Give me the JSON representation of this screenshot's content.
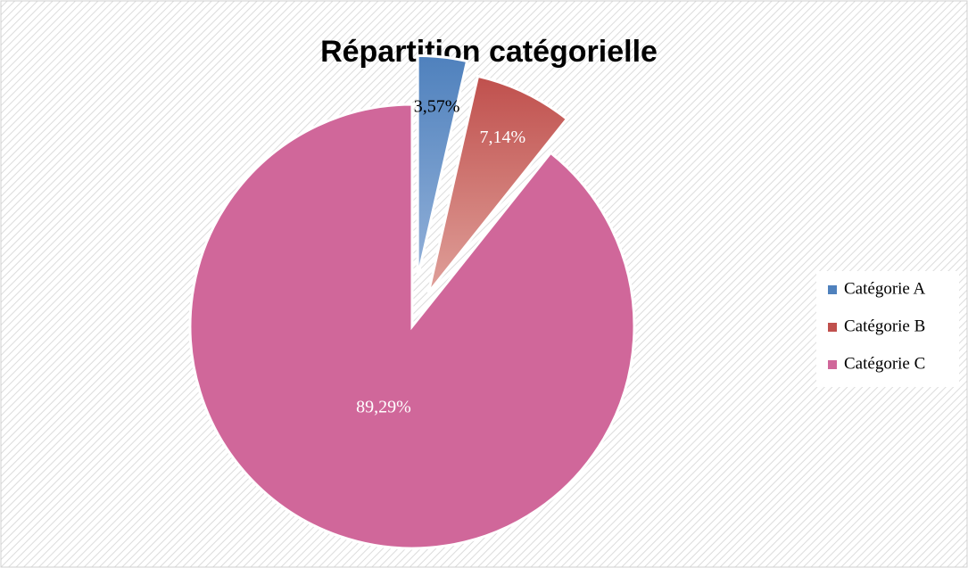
{
  "chart_data": {
    "type": "pie",
    "title": "Répartition catégorielle",
    "categories": [
      "Catégorie A",
      "Catégorie B",
      "Catégorie C"
    ],
    "values": [
      3.57,
      7.14,
      89.29
    ],
    "value_labels": [
      "3,57%",
      "7,14%",
      "89,29%"
    ],
    "colors": [
      "#4f81bd",
      "#c0504d",
      "#d0679a"
    ],
    "legend": "right"
  }
}
